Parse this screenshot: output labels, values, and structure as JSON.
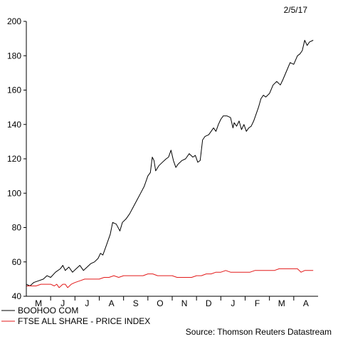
{
  "date": "2/5/17",
  "source": "Source: Thomson Reuters Datastream",
  "chart_data": {
    "type": "line",
    "ylim": [
      40,
      200
    ],
    "yticks": [
      40,
      60,
      80,
      100,
      120,
      140,
      160,
      180,
      200
    ],
    "xlim": [
      0,
      12
    ],
    "months": [
      {
        "label": "M",
        "x": 0.5
      },
      {
        "label": "J",
        "x": 1.5
      },
      {
        "label": "J",
        "x": 2.5
      },
      {
        "label": "A",
        "x": 3.5
      },
      {
        "label": "S",
        "x": 4.5
      },
      {
        "label": "O",
        "x": 5.5
      },
      {
        "label": "N",
        "x": 6.5
      },
      {
        "label": "D",
        "x": 7.5
      },
      {
        "label": "J",
        "x": 8.5
      },
      {
        "label": "F",
        "x": 9.5
      },
      {
        "label": "M",
        "x": 10.5
      },
      {
        "label": "A",
        "x": 11.5
      }
    ],
    "month_ticks": [
      1,
      2,
      3,
      4,
      5,
      6,
      7,
      8,
      9,
      10,
      11
    ],
    "series": [
      {
        "name": "BOOHOO COM",
        "color": "#000000",
        "points": [
          [
            0.0,
            47
          ],
          [
            0.15,
            46
          ],
          [
            0.3,
            48
          ],
          [
            0.5,
            49
          ],
          [
            0.7,
            50
          ],
          [
            0.85,
            52
          ],
          [
            1.0,
            51
          ],
          [
            1.2,
            54
          ],
          [
            1.4,
            56
          ],
          [
            1.5,
            58
          ],
          [
            1.6,
            55
          ],
          [
            1.75,
            57
          ],
          [
            1.9,
            54
          ],
          [
            2.05,
            56
          ],
          [
            2.2,
            58
          ],
          [
            2.35,
            55
          ],
          [
            2.5,
            57
          ],
          [
            2.65,
            59
          ],
          [
            2.8,
            60
          ],
          [
            2.95,
            62
          ],
          [
            3.05,
            65
          ],
          [
            3.15,
            64
          ],
          [
            3.3,
            70
          ],
          [
            3.45,
            76
          ],
          [
            3.55,
            83
          ],
          [
            3.7,
            82
          ],
          [
            3.85,
            78
          ],
          [
            3.95,
            83
          ],
          [
            4.1,
            85
          ],
          [
            4.25,
            88
          ],
          [
            4.4,
            92
          ],
          [
            4.55,
            96
          ],
          [
            4.7,
            100
          ],
          [
            4.85,
            104
          ],
          [
            5.0,
            110
          ],
          [
            5.1,
            112
          ],
          [
            5.18,
            121
          ],
          [
            5.25,
            119
          ],
          [
            5.32,
            113
          ],
          [
            5.45,
            116
          ],
          [
            5.6,
            118
          ],
          [
            5.75,
            120
          ],
          [
            5.85,
            121
          ],
          [
            5.95,
            125
          ],
          [
            6.05,
            119
          ],
          [
            6.15,
            115
          ],
          [
            6.25,
            117
          ],
          [
            6.4,
            119
          ],
          [
            6.55,
            120
          ],
          [
            6.7,
            123
          ],
          [
            6.85,
            121
          ],
          [
            6.95,
            122
          ],
          [
            7.05,
            118
          ],
          [
            7.15,
            119
          ],
          [
            7.25,
            131
          ],
          [
            7.35,
            133
          ],
          [
            7.5,
            134
          ],
          [
            7.6,
            136
          ],
          [
            7.7,
            138
          ],
          [
            7.8,
            136
          ],
          [
            7.9,
            140
          ],
          [
            8.0,
            143
          ],
          [
            8.1,
            145
          ],
          [
            8.25,
            145
          ],
          [
            8.4,
            144
          ],
          [
            8.5,
            138
          ],
          [
            8.55,
            141
          ],
          [
            8.65,
            139
          ],
          [
            8.75,
            142
          ],
          [
            8.85,
            137
          ],
          [
            8.95,
            140
          ],
          [
            9.05,
            136
          ],
          [
            9.15,
            138
          ],
          [
            9.25,
            139
          ],
          [
            9.35,
            142
          ],
          [
            9.45,
            146
          ],
          [
            9.55,
            150
          ],
          [
            9.65,
            155
          ],
          [
            9.75,
            157
          ],
          [
            9.85,
            156
          ],
          [
            10.0,
            158
          ],
          [
            10.15,
            163
          ],
          [
            10.3,
            165
          ],
          [
            10.45,
            163
          ],
          [
            10.55,
            166
          ],
          [
            10.7,
            171
          ],
          [
            10.85,
            176
          ],
          [
            11.0,
            175
          ],
          [
            11.15,
            180
          ],
          [
            11.25,
            181
          ],
          [
            11.35,
            183
          ],
          [
            11.45,
            189
          ],
          [
            11.55,
            186
          ],
          [
            11.65,
            188
          ],
          [
            11.8,
            189
          ]
        ]
      },
      {
        "name": "FTSE ALL SHARE - PRICE INDEX",
        "color": "#e31b1b",
        "points": [
          [
            0.0,
            46
          ],
          [
            0.2,
            46
          ],
          [
            0.4,
            46
          ],
          [
            0.6,
            47
          ],
          [
            0.8,
            47
          ],
          [
            1.0,
            47
          ],
          [
            1.15,
            46
          ],
          [
            1.25,
            47
          ],
          [
            1.35,
            45
          ],
          [
            1.5,
            47
          ],
          [
            1.6,
            47
          ],
          [
            1.7,
            45
          ],
          [
            1.85,
            47
          ],
          [
            2.0,
            48
          ],
          [
            2.2,
            49
          ],
          [
            2.4,
            50
          ],
          [
            2.6,
            50
          ],
          [
            2.8,
            50
          ],
          [
            3.0,
            50
          ],
          [
            3.2,
            51
          ],
          [
            3.4,
            51
          ],
          [
            3.6,
            52
          ],
          [
            3.8,
            51
          ],
          [
            4.0,
            52
          ],
          [
            4.2,
            52
          ],
          [
            4.4,
            52
          ],
          [
            4.6,
            52
          ],
          [
            4.8,
            52
          ],
          [
            5.0,
            53
          ],
          [
            5.2,
            53
          ],
          [
            5.4,
            52
          ],
          [
            5.6,
            52
          ],
          [
            5.8,
            52
          ],
          [
            6.0,
            52
          ],
          [
            6.2,
            51
          ],
          [
            6.4,
            51
          ],
          [
            6.6,
            51
          ],
          [
            6.8,
            51
          ],
          [
            7.0,
            52
          ],
          [
            7.2,
            52
          ],
          [
            7.4,
            53
          ],
          [
            7.6,
            53
          ],
          [
            7.8,
            54
          ],
          [
            8.0,
            54
          ],
          [
            8.2,
            55
          ],
          [
            8.4,
            54
          ],
          [
            8.6,
            54
          ],
          [
            8.8,
            54
          ],
          [
            9.0,
            54
          ],
          [
            9.2,
            54
          ],
          [
            9.4,
            55
          ],
          [
            9.6,
            55
          ],
          [
            9.8,
            55
          ],
          [
            10.0,
            55
          ],
          [
            10.2,
            55
          ],
          [
            10.4,
            56
          ],
          [
            10.6,
            56
          ],
          [
            10.8,
            56
          ],
          [
            11.0,
            56
          ],
          [
            11.15,
            56
          ],
          [
            11.3,
            54
          ],
          [
            11.45,
            55
          ],
          [
            11.6,
            55
          ],
          [
            11.8,
            55
          ]
        ]
      }
    ]
  }
}
